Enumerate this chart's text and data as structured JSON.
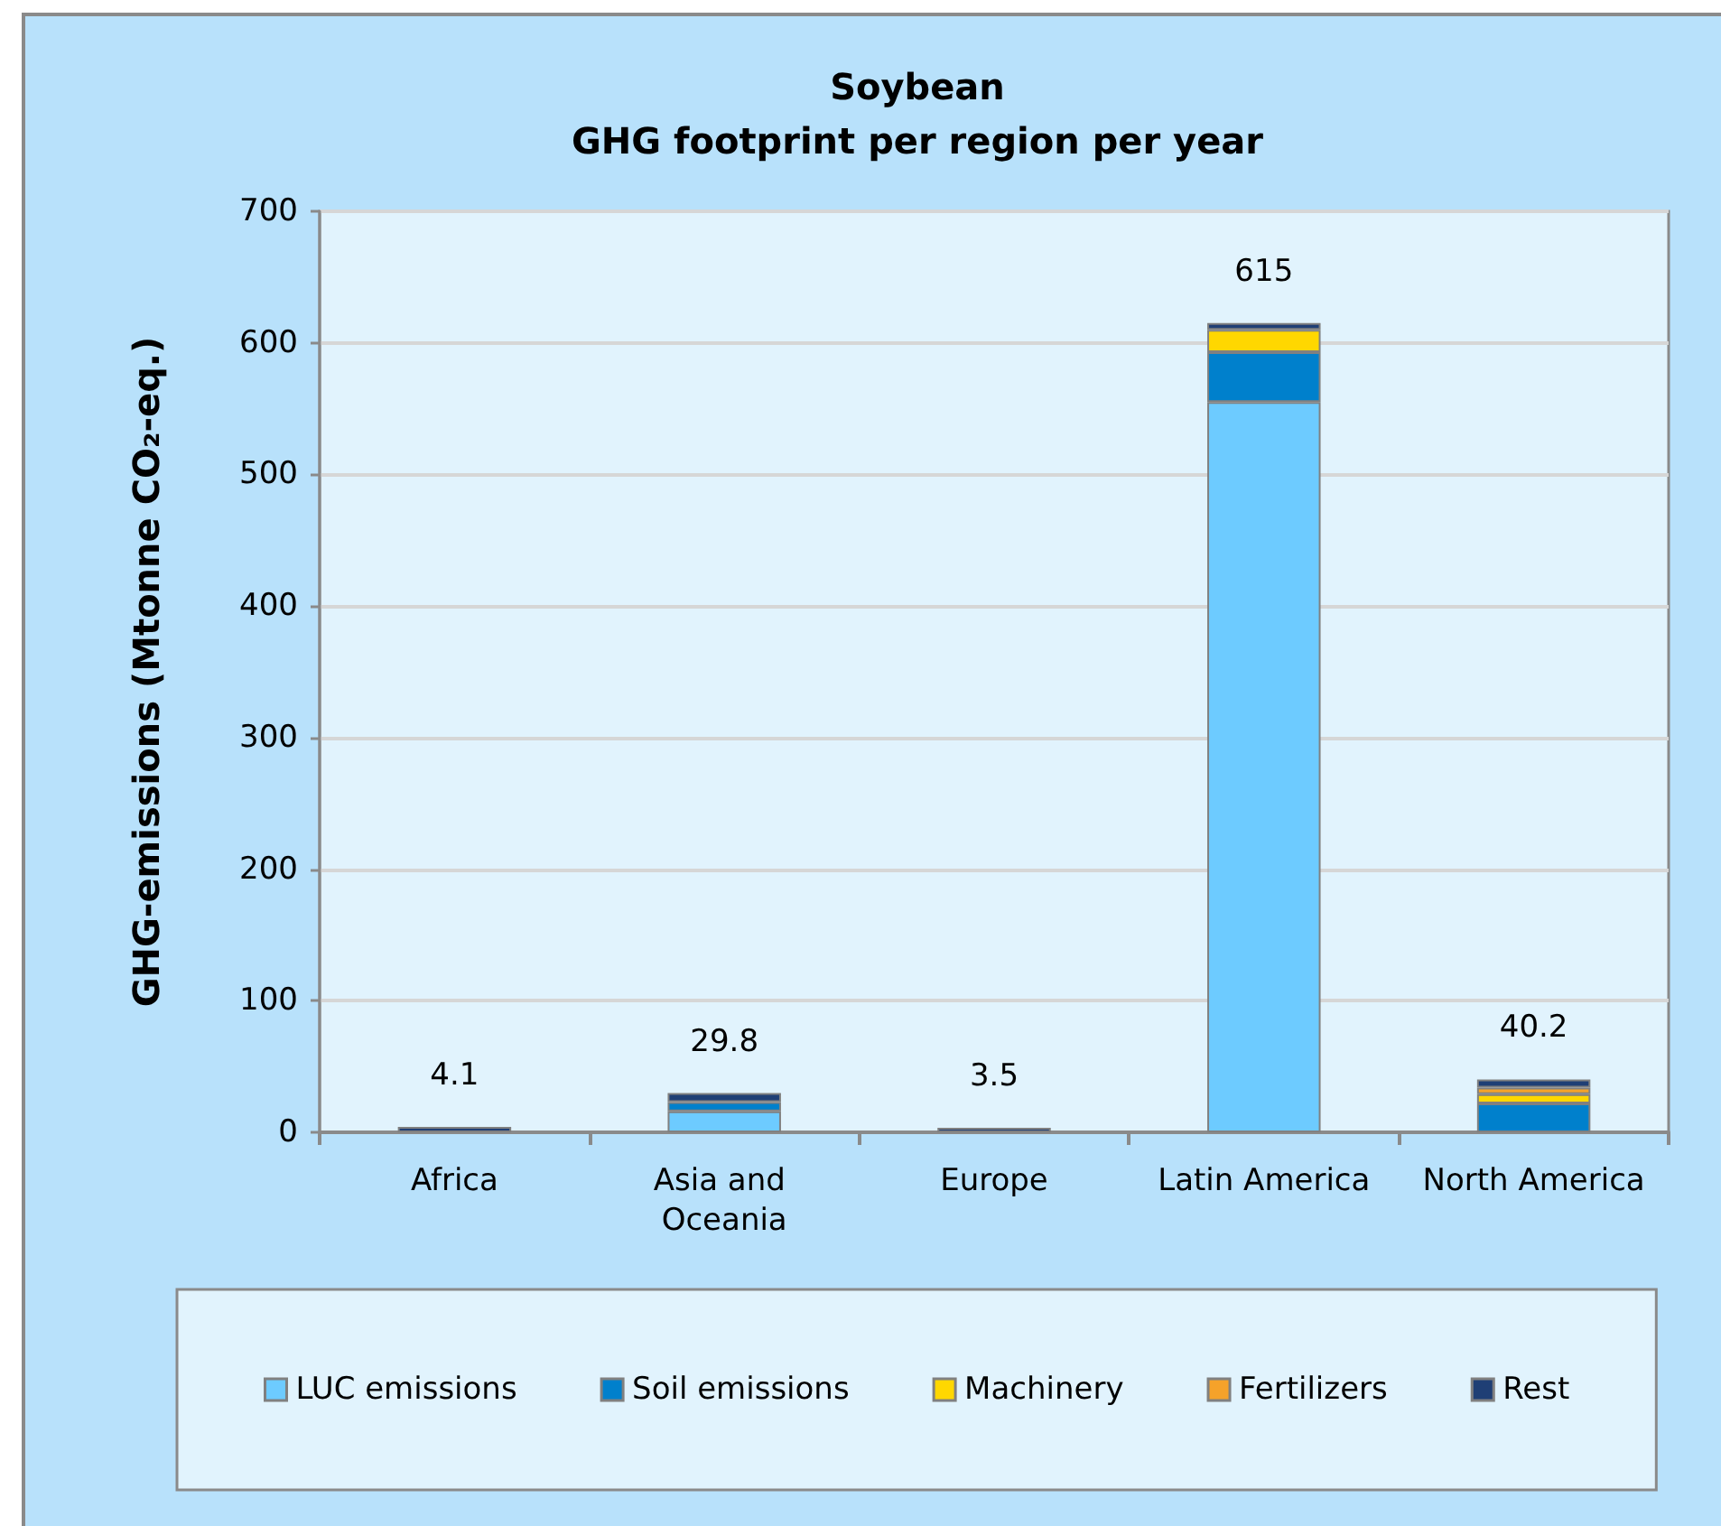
{
  "chart_data": {
    "type": "bar",
    "title": "Soybean",
    "subtitle": "GHG footprint per region per year",
    "ylabel": "GHG-emissions (Mtonne CO₂-eq.)",
    "categories": [
      "Africa",
      "Asia and Oceania",
      "Europe",
      "Latin America",
      "North America"
    ],
    "series": [
      {
        "name": "LUC emissions",
        "color": "#6dcbff",
        "values": [
          null,
          16,
          null,
          555,
          null
        ]
      },
      {
        "name": "Soil emissions",
        "color": "#0080cc",
        "values": [
          null,
          7,
          null,
          38,
          22
        ]
      },
      {
        "name": "Machinery",
        "color": "#ffd700",
        "values": [
          null,
          null,
          null,
          17,
          7
        ]
      },
      {
        "name": "Fertilizers",
        "color": "#f5a22a",
        "values": [
          null,
          null,
          null,
          null,
          5
        ]
      },
      {
        "name": "Rest",
        "color": "#1f3f75",
        "values": [
          4.1,
          6.8,
          3.5,
          5,
          6.2
        ]
      }
    ],
    "stacked": true,
    "totals": [
      "4.1",
      "29.8",
      "3.5",
      "615",
      "40.2"
    ],
    "ylim": [
      0,
      700
    ],
    "yticks": [
      0,
      100,
      200,
      300,
      400,
      500,
      600,
      700
    ],
    "grid": "y",
    "legend": "bottom"
  }
}
